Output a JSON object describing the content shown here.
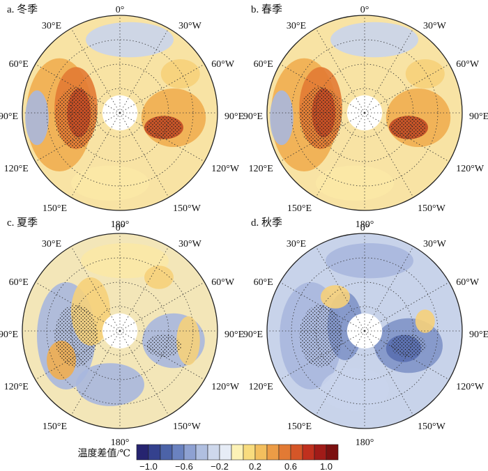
{
  "figure": {
    "panels": [
      {
        "title": "a. 冬季",
        "lon_labels": [
          "0°",
          "30°W",
          "60°W",
          "90°E",
          "120°W",
          "150°W",
          "180°",
          "150°E",
          "120°E",
          "90°E",
          "60°E",
          "30°E"
        ],
        "pattern": "warm-dominant"
      },
      {
        "title": "b. 春季",
        "lon_labels": [
          "0°",
          "30°W",
          "60°W",
          "90°E",
          "120°W",
          "150°W",
          "180°",
          "150°E",
          "120°E",
          "90°E",
          "60°E",
          "30°E"
        ],
        "pattern": "warm-dominant"
      },
      {
        "title": "c. 夏季",
        "lon_labels": [
          "0°",
          "30°W",
          "60°W",
          "90°E",
          "120°W",
          "150°W",
          "180°",
          "150°E",
          "120°E",
          "90°E",
          "60°E",
          "30°E"
        ],
        "pattern": "mixed"
      },
      {
        "title": "d. 秋季",
        "lon_labels": [
          "0°",
          "30°W",
          "60°W",
          "90°E",
          "120°W",
          "150°W",
          "180°",
          "150°E",
          "120°E",
          "90°E",
          "60°E",
          "30°E"
        ],
        "pattern": "cool-dominant"
      }
    ],
    "colorbar": {
      "title": "温度差值/℃",
      "tick_labels": [
        "−1.0",
        "−0.6",
        "−0.2",
        "0.2",
        "0.6",
        "1.0"
      ],
      "colors": [
        "#262470",
        "#34418e",
        "#4c63a8",
        "#6a82c0",
        "#8ea1d2",
        "#b0bfe0",
        "#ced8ec",
        "#e6ecf6",
        "#fcf2b6",
        "#f8dc7e",
        "#f3bf5e",
        "#ec9c46",
        "#e27a34",
        "#d55628",
        "#c0301e",
        "#a11b18",
        "#7c1010"
      ]
    }
  }
}
